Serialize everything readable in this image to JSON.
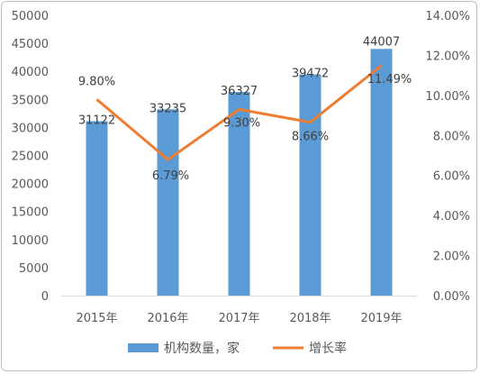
{
  "colors": {
    "bar": "#5b9bd5",
    "line": "#ed7d31",
    "axis": "#d9d9d9",
    "text": "#595959"
  },
  "chart_data": {
    "type": "bar",
    "categories": [
      "2015年",
      "2016年",
      "2017年",
      "2018年",
      "2019年"
    ],
    "series": [
      {
        "name": "机构数量，家",
        "type": "bar",
        "axis": "left",
        "values": [
          31122,
          33235,
          36327,
          39472,
          44007
        ],
        "labels": [
          "31122",
          "33235",
          "36327",
          "39472",
          "44007"
        ]
      },
      {
        "name": "增长率",
        "type": "line",
        "axis": "right",
        "values": [
          9.8,
          6.79,
          9.3,
          8.66,
          11.49
        ],
        "labels": [
          "9.80%",
          "6.79%",
          "9.30%",
          "8.66%",
          "11.49%"
        ]
      }
    ],
    "left_axis": {
      "range": [
        0,
        50000
      ],
      "ticks": [
        "0",
        "5000",
        "10000",
        "15000",
        "20000",
        "25000",
        "30000",
        "35000",
        "40000",
        "45000",
        "50000"
      ]
    },
    "right_axis": {
      "range": [
        0,
        14
      ],
      "ticks": [
        "0.00%",
        "2.00%",
        "4.00%",
        "6.00%",
        "8.00%",
        "10.00%",
        "12.00%",
        "14.00%"
      ]
    },
    "grid": false,
    "legend_position": "bottom"
  }
}
